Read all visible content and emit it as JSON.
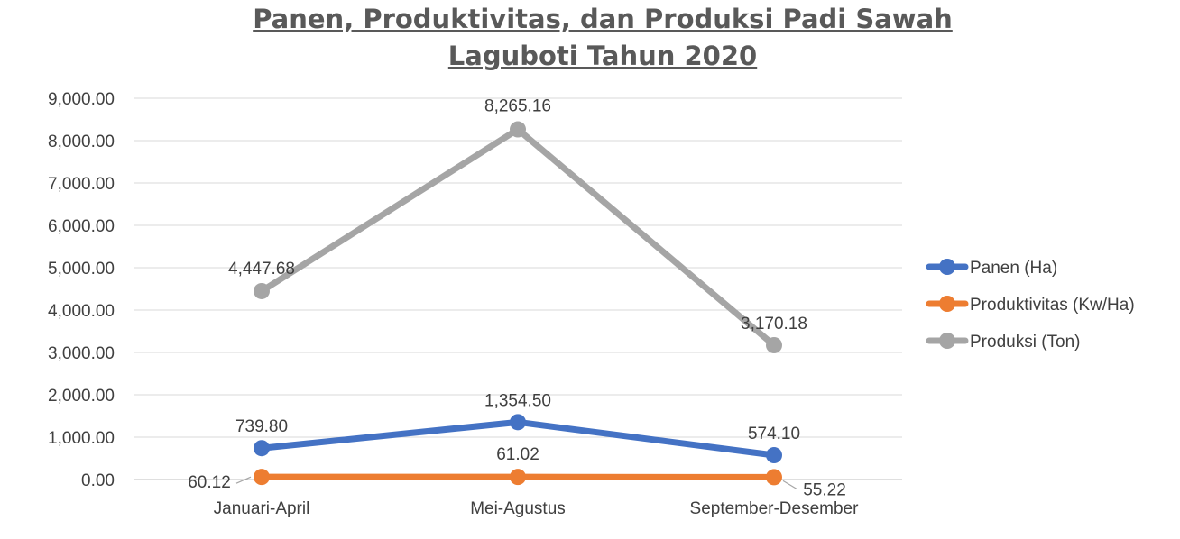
{
  "chart_data": {
    "type": "line",
    "title": [
      "Panen, Produktivitas, dan Produksi Padi Sawah",
      "Laguboti Tahun 2020"
    ],
    "xlabel": "",
    "ylabel": "",
    "categories": [
      "Januari-April",
      "Mei-Agustus",
      "September-Desember"
    ],
    "ylim": [
      0,
      9000
    ],
    "yticks": [
      "0.00",
      "1,000.00",
      "2,000.00",
      "3,000.00",
      "4,000.00",
      "5,000.00",
      "6,000.00",
      "7,000.00",
      "8,000.00",
      "9,000.00"
    ],
    "grid": true,
    "legend_position": "right",
    "series": [
      {
        "name": "Panen (Ha)",
        "color": "#4472C4",
        "values": [
          739.8,
          1354.5,
          574.1
        ],
        "labels": [
          "739.80",
          "1,354.50",
          "574.10"
        ]
      },
      {
        "name": "Produktivitas (Kw/Ha)",
        "color": "#ED7D31",
        "values": [
          60.12,
          61.02,
          55.22
        ],
        "labels": [
          "60.12",
          "61.02",
          "55.22"
        ]
      },
      {
        "name": "Produksi (Ton)",
        "color": "#A5A5A5",
        "values": [
          4447.68,
          8265.16,
          3170.18
        ],
        "labels": [
          "4,447.68",
          "8,265.16",
          "3,170.18"
        ]
      }
    ]
  }
}
